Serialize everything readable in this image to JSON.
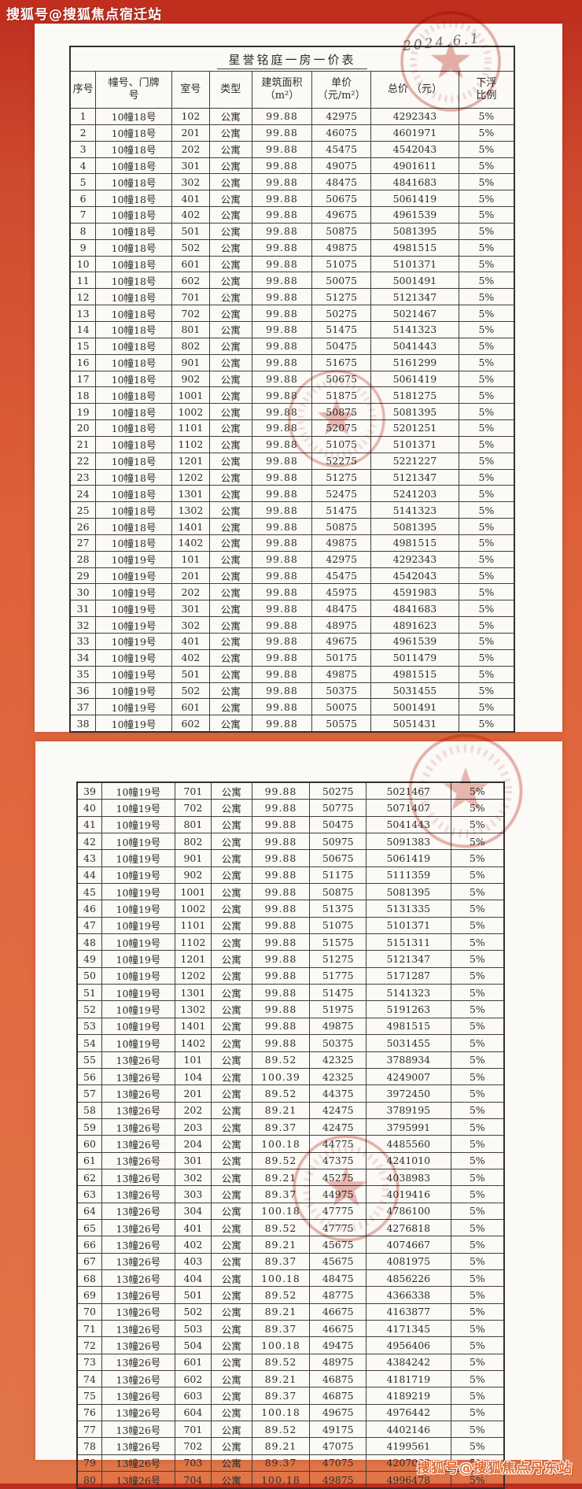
{
  "watermarks": {
    "top": "搜狐号@搜狐焦点宿迁站",
    "bottom": "搜狐号@搜狐焦点丹东站"
  },
  "colors": {
    "background_top": "#bd2e1f",
    "background_bottom": "#e17547",
    "page": "#fbfaf7",
    "stamp_red": "#c23b2e",
    "table_ink": "#2e2c2a"
  },
  "document": {
    "title": "星誉铭庭一房一价表",
    "stamp_date": "2024.6.1",
    "stamp_icon": "red-seal-star",
    "columns": [
      "序号",
      "幢号、门牌\n号",
      "室号",
      "类型",
      "建筑面积\n（m²）",
      "单价\n（元/m²）",
      "总价 （元）",
      "下浮\n比例"
    ],
    "column_keys": [
      "no",
      "building",
      "room",
      "type",
      "area",
      "unit-price",
      "total-price",
      "discount"
    ],
    "page1_row_count": 38,
    "rows": [
      [
        "1",
        "10幢18号",
        "102",
        "公寓",
        "99.88",
        "42975",
        "4292343",
        "5%"
      ],
      [
        "2",
        "10幢18号",
        "201",
        "公寓",
        "99.88",
        "46075",
        "4601971",
        "5%"
      ],
      [
        "3",
        "10幢18号",
        "202",
        "公寓",
        "99.88",
        "45475",
        "4542043",
        "5%"
      ],
      [
        "4",
        "10幢18号",
        "301",
        "公寓",
        "99.88",
        "49075",
        "4901611",
        "5%"
      ],
      [
        "5",
        "10幢18号",
        "302",
        "公寓",
        "99.88",
        "48475",
        "4841683",
        "5%"
      ],
      [
        "6",
        "10幢18号",
        "401",
        "公寓",
        "99.88",
        "50675",
        "5061419",
        "5%"
      ],
      [
        "7",
        "10幢18号",
        "402",
        "公寓",
        "99.88",
        "49675",
        "4961539",
        "5%"
      ],
      [
        "8",
        "10幢18号",
        "501",
        "公寓",
        "99.88",
        "50875",
        "5081395",
        "5%"
      ],
      [
        "9",
        "10幢18号",
        "502",
        "公寓",
        "99.88",
        "49875",
        "4981515",
        "5%"
      ],
      [
        "10",
        "10幢18号",
        "601",
        "公寓",
        "99.88",
        "51075",
        "5101371",
        "5%"
      ],
      [
        "11",
        "10幢18号",
        "602",
        "公寓",
        "99.88",
        "50075",
        "5001491",
        "5%"
      ],
      [
        "12",
        "10幢18号",
        "701",
        "公寓",
        "99.88",
        "51275",
        "5121347",
        "5%"
      ],
      [
        "13",
        "10幢18号",
        "702",
        "公寓",
        "99.88",
        "50275",
        "5021467",
        "5%"
      ],
      [
        "14",
        "10幢18号",
        "801",
        "公寓",
        "99.88",
        "51475",
        "5141323",
        "5%"
      ],
      [
        "15",
        "10幢18号",
        "802",
        "公寓",
        "99.88",
        "50475",
        "5041443",
        "5%"
      ],
      [
        "16",
        "10幢18号",
        "901",
        "公寓",
        "99.88",
        "51675",
        "5161299",
        "5%"
      ],
      [
        "17",
        "10幢18号",
        "902",
        "公寓",
        "99.88",
        "50675",
        "5061419",
        "5%"
      ],
      [
        "18",
        "10幢18号",
        "1001",
        "公寓",
        "99.88",
        "51875",
        "5181275",
        "5%"
      ],
      [
        "19",
        "10幢18号",
        "1002",
        "公寓",
        "99.88",
        "50875",
        "5081395",
        "5%"
      ],
      [
        "20",
        "10幢18号",
        "1101",
        "公寓",
        "99.88",
        "52075",
        "5201251",
        "5%"
      ],
      [
        "21",
        "10幢18号",
        "1102",
        "公寓",
        "99.88",
        "51075",
        "5101371",
        "5%"
      ],
      [
        "22",
        "10幢18号",
        "1201",
        "公寓",
        "99.88",
        "52275",
        "5221227",
        "5%"
      ],
      [
        "23",
        "10幢18号",
        "1202",
        "公寓",
        "99.88",
        "51275",
        "5121347",
        "5%"
      ],
      [
        "24",
        "10幢18号",
        "1301",
        "公寓",
        "99.88",
        "52475",
        "5241203",
        "5%"
      ],
      [
        "25",
        "10幢18号",
        "1302",
        "公寓",
        "99.88",
        "51475",
        "5141323",
        "5%"
      ],
      [
        "26",
        "10幢18号",
        "1401",
        "公寓",
        "99.88",
        "50875",
        "5081395",
        "5%"
      ],
      [
        "27",
        "10幢18号",
        "1402",
        "公寓",
        "99.88",
        "49875",
        "4981515",
        "5%"
      ],
      [
        "28",
        "10幢19号",
        "101",
        "公寓",
        "99.88",
        "42975",
        "4292343",
        "5%"
      ],
      [
        "29",
        "10幢19号",
        "201",
        "公寓",
        "99.88",
        "45475",
        "4542043",
        "5%"
      ],
      [
        "30",
        "10幢19号",
        "202",
        "公寓",
        "99.88",
        "45975",
        "4591983",
        "5%"
      ],
      [
        "31",
        "10幢19号",
        "301",
        "公寓",
        "99.88",
        "48475",
        "4841683",
        "5%"
      ],
      [
        "32",
        "10幢19号",
        "302",
        "公寓",
        "99.88",
        "48975",
        "4891623",
        "5%"
      ],
      [
        "33",
        "10幢19号",
        "401",
        "公寓",
        "99.88",
        "49675",
        "4961539",
        "5%"
      ],
      [
        "34",
        "10幢19号",
        "402",
        "公寓",
        "99.88",
        "50175",
        "5011479",
        "5%"
      ],
      [
        "35",
        "10幢19号",
        "501",
        "公寓",
        "99.88",
        "49875",
        "4981515",
        "5%"
      ],
      [
        "36",
        "10幢19号",
        "502",
        "公寓",
        "99.88",
        "50375",
        "5031455",
        "5%"
      ],
      [
        "37",
        "10幢19号",
        "601",
        "公寓",
        "99.88",
        "50075",
        "5001491",
        "5%"
      ],
      [
        "38",
        "10幢19号",
        "602",
        "公寓",
        "99.88",
        "50575",
        "5051431",
        "5%"
      ],
      [
        "39",
        "10幢19号",
        "701",
        "公寓",
        "99.88",
        "50275",
        "5021467",
        "5%"
      ],
      [
        "40",
        "10幢19号",
        "702",
        "公寓",
        "99.88",
        "50775",
        "5071407",
        "5%"
      ],
      [
        "41",
        "10幢19号",
        "801",
        "公寓",
        "99.88",
        "50475",
        "5041443",
        "5%"
      ],
      [
        "42",
        "10幢19号",
        "802",
        "公寓",
        "99.88",
        "50975",
        "5091383",
        "5%"
      ],
      [
        "43",
        "10幢19号",
        "901",
        "公寓",
        "99.88",
        "50675",
        "5061419",
        "5%"
      ],
      [
        "44",
        "10幢19号",
        "902",
        "公寓",
        "99.88",
        "51175",
        "5111359",
        "5%"
      ],
      [
        "45",
        "10幢19号",
        "1001",
        "公寓",
        "99.88",
        "50875",
        "5081395",
        "5%"
      ],
      [
        "46",
        "10幢19号",
        "1002",
        "公寓",
        "99.88",
        "51375",
        "5131335",
        "5%"
      ],
      [
        "47",
        "10幢19号",
        "1101",
        "公寓",
        "99.88",
        "51075",
        "5101371",
        "5%"
      ],
      [
        "48",
        "10幢19号",
        "1102",
        "公寓",
        "99.88",
        "51575",
        "5151311",
        "5%"
      ],
      [
        "49",
        "10幢19号",
        "1201",
        "公寓",
        "99.88",
        "51275",
        "5121347",
        "5%"
      ],
      [
        "50",
        "10幢19号",
        "1202",
        "公寓",
        "99.88",
        "51775",
        "5171287",
        "5%"
      ],
      [
        "51",
        "10幢19号",
        "1301",
        "公寓",
        "99.88",
        "51475",
        "5141323",
        "5%"
      ],
      [
        "52",
        "10幢19号",
        "1302",
        "公寓",
        "99.88",
        "51975",
        "5191263",
        "5%"
      ],
      [
        "53",
        "10幢19号",
        "1401",
        "公寓",
        "99.88",
        "49875",
        "4981515",
        "5%"
      ],
      [
        "54",
        "10幢19号",
        "1402",
        "公寓",
        "99.88",
        "50375",
        "5031455",
        "5%"
      ],
      [
        "55",
        "13幢26号",
        "101",
        "公寓",
        "89.52",
        "42325",
        "3788934",
        "5%"
      ],
      [
        "56",
        "13幢26号",
        "104",
        "公寓",
        "100.39",
        "42325",
        "4249007",
        "5%"
      ],
      [
        "57",
        "13幢26号",
        "201",
        "公寓",
        "89.52",
        "44375",
        "3972450",
        "5%"
      ],
      [
        "58",
        "13幢26号",
        "202",
        "公寓",
        "89.21",
        "42475",
        "3789195",
        "5%"
      ],
      [
        "59",
        "13幢26号",
        "203",
        "公寓",
        "89.37",
        "42475",
        "3795991",
        "5%"
      ],
      [
        "60",
        "13幢26号",
        "204",
        "公寓",
        "100.18",
        "44775",
        "4485560",
        "5%"
      ],
      [
        "61",
        "13幢26号",
        "301",
        "公寓",
        "89.52",
        "47375",
        "4241010",
        "5%"
      ],
      [
        "62",
        "13幢26号",
        "302",
        "公寓",
        "89.21",
        "45275",
        "4038983",
        "5%"
      ],
      [
        "63",
        "13幢26号",
        "303",
        "公寓",
        "89.37",
        "44975",
        "4019416",
        "5%"
      ],
      [
        "64",
        "13幢26号",
        "304",
        "公寓",
        "100.18",
        "47775",
        "4786100",
        "5%"
      ],
      [
        "65",
        "13幢26号",
        "401",
        "公寓",
        "89.52",
        "47775",
        "4276818",
        "5%"
      ],
      [
        "66",
        "13幢26号",
        "402",
        "公寓",
        "89.21",
        "45675",
        "4074667",
        "5%"
      ],
      [
        "67",
        "13幢26号",
        "403",
        "公寓",
        "89.37",
        "45675",
        "4081975",
        "5%"
      ],
      [
        "68",
        "13幢26号",
        "404",
        "公寓",
        "100.18",
        "48475",
        "4856226",
        "5%"
      ],
      [
        "69",
        "13幢26号",
        "501",
        "公寓",
        "89.52",
        "48775",
        "4366338",
        "5%"
      ],
      [
        "70",
        "13幢26号",
        "502",
        "公寓",
        "89.21",
        "46675",
        "4163877",
        "5%"
      ],
      [
        "71",
        "13幢26号",
        "503",
        "公寓",
        "89.37",
        "46675",
        "4171345",
        "5%"
      ],
      [
        "72",
        "13幢26号",
        "504",
        "公寓",
        "100.18",
        "49475",
        "4956406",
        "5%"
      ],
      [
        "73",
        "13幢26号",
        "601",
        "公寓",
        "89.52",
        "48975",
        "4384242",
        "5%"
      ],
      [
        "74",
        "13幢26号",
        "602",
        "公寓",
        "89.21",
        "46875",
        "4181719",
        "5%"
      ],
      [
        "75",
        "13幢26号",
        "603",
        "公寓",
        "89.37",
        "46875",
        "4189219",
        "5%"
      ],
      [
        "76",
        "13幢26号",
        "604",
        "公寓",
        "100.18",
        "49675",
        "4976442",
        "5%"
      ],
      [
        "77",
        "13幢26号",
        "701",
        "公寓",
        "89.52",
        "49175",
        "4402146",
        "5%"
      ],
      [
        "78",
        "13幢26号",
        "702",
        "公寓",
        "89.21",
        "47075",
        "4199561",
        "5%"
      ],
      [
        "79",
        "13幢26号",
        "703",
        "公寓",
        "89.37",
        "47075",
        "4207093",
        "5%"
      ],
      [
        "80",
        "13幢26号",
        "704",
        "公寓",
        "100.18",
        "49875",
        "4996478",
        "5%"
      ]
    ]
  }
}
